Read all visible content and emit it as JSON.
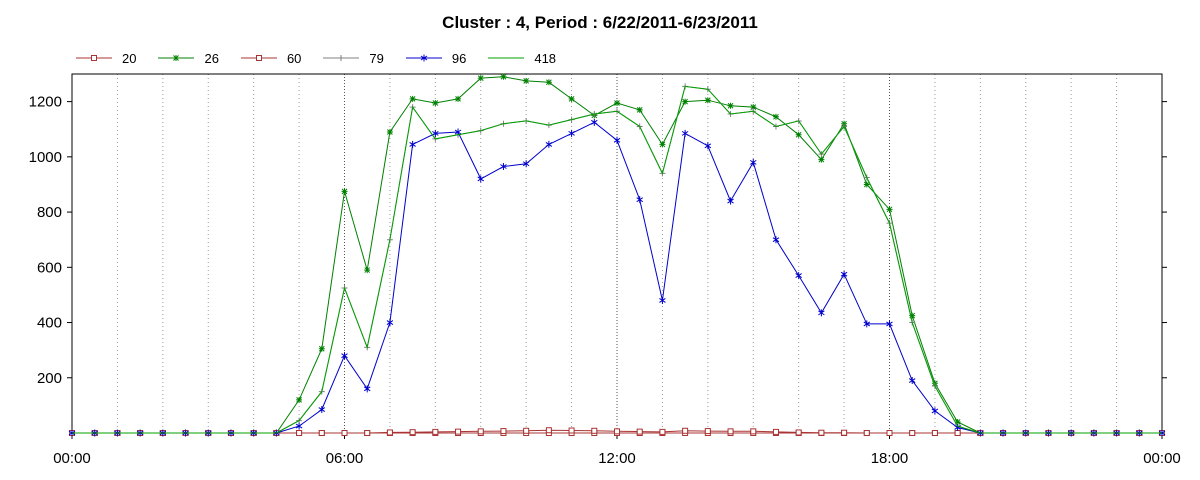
{
  "chart_data": {
    "type": "line",
    "title": "Cluster : 4, Period : 6/22/2011-6/23/2011",
    "xlabel": "",
    "ylabel": "",
    "x_range_hours": [
      0,
      24
    ],
    "ylim": [
      0,
      1300
    ],
    "x_tick_labels": [
      "00:00",
      "06:00",
      "12:00",
      "18:00",
      "00:00"
    ],
    "y_ticks": [
      200,
      400,
      600,
      800,
      1000,
      1200
    ],
    "grid": "dotted vertical",
    "legend_position": "top-left",
    "x": [
      0,
      0.5,
      1,
      1.5,
      2,
      2.5,
      3,
      3.5,
      4,
      4.5,
      5,
      5.5,
      6,
      6.5,
      7,
      7.5,
      8,
      8.5,
      9,
      9.5,
      10,
      10.5,
      11,
      11.5,
      12,
      12.5,
      13,
      13.5,
      14,
      14.5,
      15,
      15.5,
      16,
      16.5,
      17,
      17.5,
      18,
      18.5,
      19,
      19.5,
      20,
      20.5,
      21,
      21.5,
      22,
      22.5,
      23,
      23.5,
      24
    ],
    "series": [
      {
        "name": "20",
        "color": "#aa3333",
        "marker": "square",
        "values": [
          0,
          0,
          0,
          0,
          0,
          0,
          0,
          0,
          0,
          0,
          0,
          0,
          0,
          0,
          0,
          0,
          0,
          0,
          0,
          0,
          0,
          0,
          0,
          0,
          0,
          0,
          0,
          0,
          0,
          0,
          0,
          0,
          0,
          0,
          0,
          0,
          0,
          0,
          0,
          0,
          0,
          0,
          0,
          0,
          0,
          0,
          0,
          0,
          0
        ]
      },
      {
        "name": "26",
        "color": "#008000",
        "marker": "star",
        "values": [
          0,
          0,
          0,
          0,
          0,
          0,
          0,
          0,
          0,
          0,
          120,
          305,
          875,
          590,
          1090,
          1210,
          1195,
          1210,
          1285,
          1290,
          1275,
          1270,
          1210,
          1150,
          1195,
          1170,
          1045,
          1200,
          1205,
          1185,
          1180,
          1145,
          1080,
          990,
          1120,
          900,
          810,
          425,
          180,
          40,
          0,
          0,
          0,
          0,
          0,
          0,
          0,
          0,
          0
        ]
      },
      {
        "name": "60",
        "color": "#aa3333",
        "marker": "square",
        "values": [
          0,
          0,
          0,
          0,
          0,
          0,
          0,
          0,
          0,
          0,
          0,
          0,
          0,
          0,
          2,
          3,
          4,
          5,
          6,
          7,
          8,
          10,
          9,
          8,
          6,
          5,
          4,
          8,
          7,
          6,
          6,
          4,
          2,
          1,
          1,
          0,
          0,
          0,
          0,
          0,
          0,
          0,
          0,
          0,
          0,
          0,
          0,
          0,
          0
        ]
      },
      {
        "name": "79",
        "color": "#808080",
        "marker": "plus",
        "values": [
          0,
          0,
          0,
          0,
          0,
          0,
          0,
          0,
          0,
          0,
          45,
          150,
          525,
          310,
          700,
          1180,
          1065,
          1080,
          1095,
          1120,
          1130,
          1115,
          1135,
          1155,
          1165,
          1110,
          940,
          1255,
          1245,
          1155,
          1165,
          1110,
          1130,
          1010,
          1110,
          925,
          760,
          400,
          170,
          25,
          0,
          0,
          0,
          0,
          0,
          0,
          0,
          0,
          0
        ]
      },
      {
        "name": "96",
        "color": "#0000cc",
        "marker": "asterisk",
        "values": [
          0,
          0,
          0,
          0,
          0,
          0,
          0,
          0,
          0,
          0,
          25,
          85,
          280,
          160,
          400,
          1045,
          1085,
          1090,
          920,
          965,
          975,
          1045,
          1085,
          1125,
          1060,
          845,
          480,
          1085,
          1040,
          840,
          980,
          700,
          570,
          435,
          575,
          395,
          395,
          190,
          80,
          20,
          0,
          0,
          0,
          0,
          0,
          0,
          0,
          0,
          0
        ]
      },
      {
        "name": "418",
        "color": "#00a000",
        "marker": "none",
        "values": [
          0,
          0,
          0,
          0,
          0,
          0,
          0,
          0,
          0,
          0,
          45,
          150,
          525,
          310,
          700,
          1180,
          1065,
          1080,
          1095,
          1120,
          1130,
          1115,
          1135,
          1155,
          1165,
          1110,
          940,
          1255,
          1245,
          1155,
          1165,
          1110,
          1130,
          1010,
          1110,
          925,
          760,
          400,
          170,
          25,
          0,
          0,
          0,
          0,
          0,
          0,
          0,
          0,
          0
        ]
      }
    ]
  }
}
